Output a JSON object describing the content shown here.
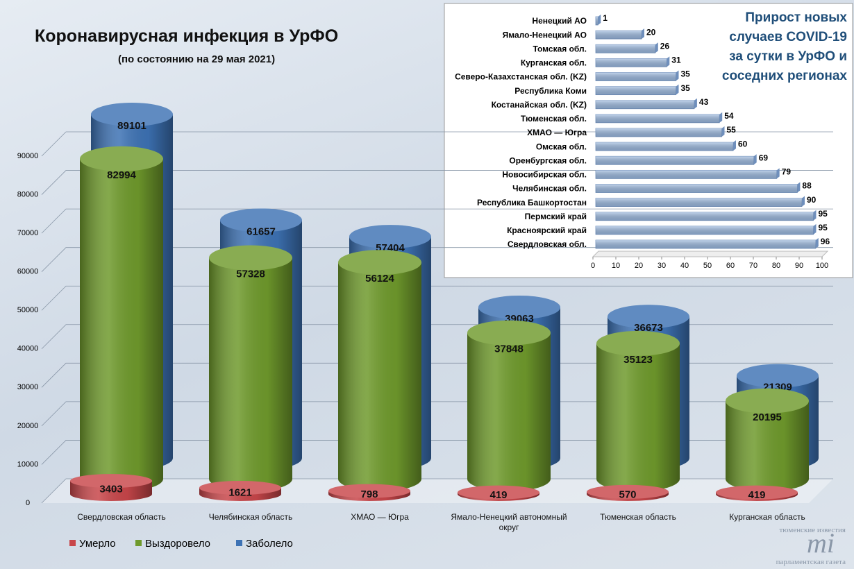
{
  "chart_data": [
    {
      "type": "cylinder",
      "title": "Коронавирусная инфекция в УрФО",
      "subtitle": "(по состоянию на 29 мая 2021)",
      "categories": [
        "Свердловская область",
        "Челябинская область",
        "ХМАО — Югра",
        "Ямало-Ненецкий автономный округ",
        "Тюменская область",
        "Курганская область"
      ],
      "series": [
        {
          "name": "Умерло",
          "color": "#c8464a",
          "values": [
            3403,
            1621,
            798,
            419,
            570,
            419
          ]
        },
        {
          "name": "Выздоровело",
          "color": "#6f9a2c",
          "values": [
            82994,
            57328,
            56124,
            37848,
            35123,
            20195
          ]
        },
        {
          "name": "Заболело",
          "color": "#3d72b4",
          "values": [
            89101,
            61657,
            57404,
            39063,
            36673,
            21309
          ]
        }
      ],
      "ylim": [
        0,
        90000
      ],
      "yticks": [
        0,
        10000,
        20000,
        30000,
        40000,
        50000,
        60000,
        70000,
        80000,
        90000
      ],
      "grid": true,
      "legend": "bottom-left"
    },
    {
      "type": "barh",
      "title": "Прирост новых случаев COVID-19 за сутки в УрФО и соседних регионах",
      "categories": [
        "Ненецкий АО",
        "Ямало-Ненецкий АО",
        "Томская обл.",
        "Курганская обл.",
        "Северо-Казахстанская обл. (KZ)",
        "Республика Коми",
        "Костанайская обл. (KZ)",
        "Тюменская обл.",
        "ХМАО — Югра",
        "Омская обл.",
        "Оренбургская обл.",
        "Новосибирская обл.",
        "Челябинская обл.",
        "Республика Башкортостан",
        "Пермский край",
        "Красноярский край",
        "Свердловская обл."
      ],
      "values": [
        1,
        20,
        26,
        31,
        35,
        35,
        43,
        54,
        55,
        60,
        69,
        79,
        88,
        90,
        95,
        95,
        96
      ],
      "color": "#9bb9e0",
      "xlim": [
        0,
        100
      ],
      "xticks": [
        0,
        10,
        20,
        30,
        40,
        50,
        60,
        70,
        80,
        90,
        100
      ]
    }
  ],
  "logo": {
    "top": "тюменские известия",
    "mark": "mi",
    "bottom": "парламентская газета"
  }
}
